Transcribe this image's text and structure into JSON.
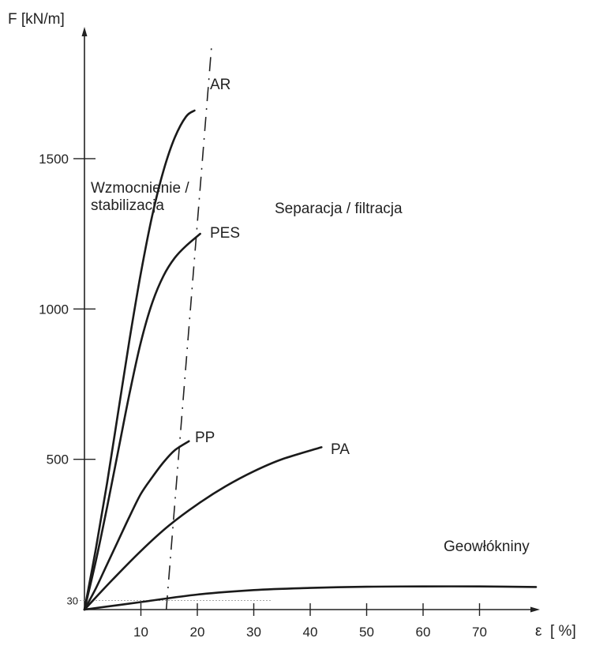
{
  "chart_data": {
    "type": "line",
    "xlabel_symbol": "ε",
    "xlabel": "[ %]",
    "ylabel": "F [kN/m]",
    "xlim": [
      0,
      80
    ],
    "ylim": [
      0,
      1850
    ],
    "x_ticks": [
      "10",
      "20",
      "30",
      "40",
      "50",
      "60",
      "70"
    ],
    "x_tick_values": [
      10,
      20,
      30,
      40,
      50,
      60,
      70
    ],
    "y_ticks": [
      "500",
      "1000",
      "1500"
    ],
    "y_tick_values": [
      500,
      1000,
      1500
    ],
    "y_marker": {
      "label": "30",
      "value": 30
    },
    "series": [
      {
        "name": "AR",
        "x": [
          0,
          2,
          4,
          6,
          8,
          10,
          12,
          14,
          16,
          18,
          19.5
        ],
        "y": [
          0,
          200,
          420,
          660,
          900,
          1120,
          1310,
          1460,
          1570,
          1640,
          1660
        ]
      },
      {
        "name": "PES",
        "x": [
          0,
          2,
          4,
          6,
          8,
          10,
          12,
          14,
          16,
          18,
          20.5
        ],
        "y": [
          0,
          160,
          340,
          530,
          720,
          890,
          1020,
          1110,
          1170,
          1210,
          1250
        ]
      },
      {
        "name": "PP",
        "x": [
          0,
          2,
          4,
          6,
          8,
          10,
          12,
          14,
          16,
          18.5
        ],
        "y": [
          0,
          70,
          150,
          230,
          310,
          385,
          440,
          490,
          530,
          560
        ]
      },
      {
        "name": "PA",
        "x": [
          0,
          5,
          10,
          15,
          20,
          25,
          30,
          35,
          42
        ],
        "y": [
          0,
          100,
          195,
          280,
          350,
          410,
          460,
          500,
          540
        ]
      },
      {
        "name": "Geowłókniny",
        "x": [
          0,
          10,
          20,
          30,
          40,
          50,
          60,
          70,
          80
        ],
        "y": [
          0,
          25,
          50,
          65,
          72,
          76,
          77,
          77,
          75
        ]
      }
    ],
    "boundary_line": {
      "x": [
        14.5,
        22.5
      ],
      "y": [
        0,
        1870
      ]
    },
    "region_labels": [
      {
        "line1": "Wzmocnienie /",
        "line2": "stabilizacja"
      },
      {
        "line1": "Separacja / filtracja"
      }
    ]
  }
}
